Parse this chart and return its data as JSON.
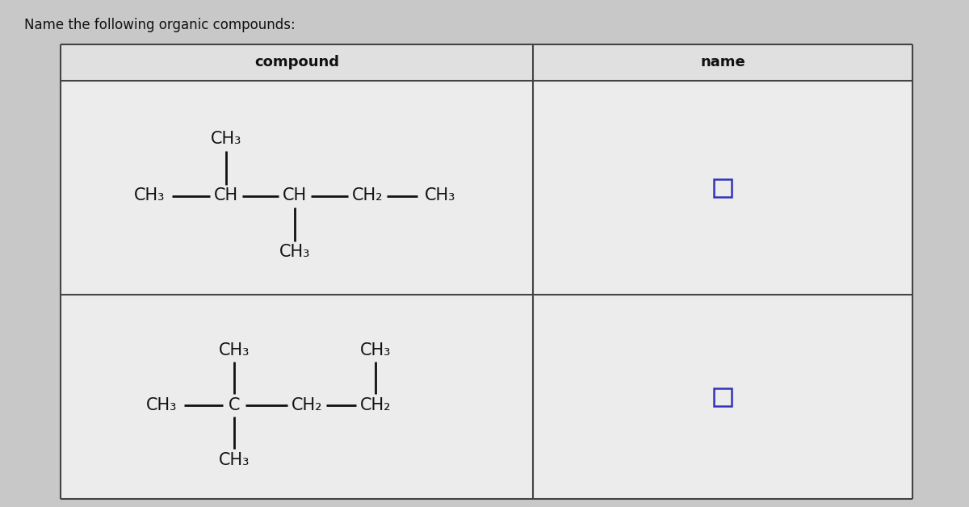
{
  "title": "Name the following organic compounds:",
  "title_fontsize": 12,
  "bg_color": "#c8c8c8",
  "cell_bg": "#ececec",
  "header_bg": "#e0e0e0",
  "border_color": "#444444",
  "text_color": "#111111",
  "col1_header": "compound",
  "col2_header": "name",
  "compound1_labels": [
    "CH₃",
    "CH",
    "CH",
    "CH₂",
    "CH₃"
  ],
  "compound1_branch_up": "CH₃",
  "compound1_branch_up_idx": 1,
  "compound1_branch_down": "CH₃",
  "compound1_branch_down_idx": 2,
  "compound2_labels": [
    "CH₃",
    "C",
    "CH₂",
    "CH₂"
  ],
  "compound2_branch_up1": "CH₃",
  "compound2_branch_up1_idx": 1,
  "compound2_branch_down": "CH₃",
  "compound2_branch_down_idx": 1,
  "compound2_branch_up2": "CH₃",
  "compound2_branch_up2_idx": 3,
  "checkbox_color": "#3333bb",
  "dash_color": "#111111",
  "font_family": "DejaVu Sans",
  "font_size": 15
}
